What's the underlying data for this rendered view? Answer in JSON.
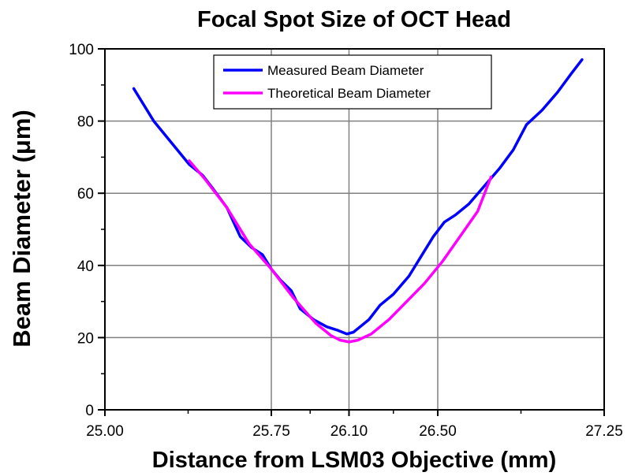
{
  "chart_data": {
    "type": "line",
    "title": "Focal Spot Size of OCT Head",
    "xlabel": "Distance from LSM03 Objective (mm)",
    "ylabel": "Beam Diameter (μm)",
    "xlim": [
      25.0,
      27.25
    ],
    "ylim": [
      0,
      100
    ],
    "xticks": [
      25.0,
      25.75,
      26.1,
      26.5,
      27.25
    ],
    "xtick_labels": [
      "25.00",
      "25.75",
      "26.10",
      "26.50",
      "27.25"
    ],
    "yticks": [
      0,
      20,
      40,
      60,
      80,
      100
    ],
    "ytick_labels": [
      "0",
      "20",
      "40",
      "60",
      "80",
      "100"
    ],
    "grid": true,
    "legend_position": "top-center",
    "series": [
      {
        "name": "Measured Beam Diameter",
        "color": "#0000ff",
        "x": [
          25.13,
          25.22,
          25.3,
          25.38,
          25.44,
          25.49,
          25.55,
          25.61,
          25.66,
          25.71,
          25.75,
          25.79,
          25.84,
          25.88,
          25.94,
          26.0,
          26.05,
          26.09,
          26.12,
          26.15,
          26.19,
          26.24,
          26.3,
          26.37,
          26.43,
          26.48,
          26.53,
          26.58,
          26.64,
          26.71,
          26.78,
          26.84,
          26.9,
          26.97,
          27.04,
          27.1,
          27.15
        ],
        "values": [
          89,
          80,
          74,
          68,
          65,
          61,
          56,
          48,
          45,
          43,
          39,
          36,
          33,
          28,
          25,
          23,
          22,
          21,
          21.5,
          23,
          25,
          29,
          32,
          37,
          43,
          48,
          52,
          54,
          57,
          62,
          67,
          72,
          79,
          83,
          88,
          93,
          97
        ]
      },
      {
        "name": "Theoretical Beam Diameter",
        "color": "#ff00ff",
        "x": [
          25.38,
          25.45,
          25.55,
          25.65,
          25.75,
          25.85,
          25.95,
          26.02,
          26.06,
          26.1,
          26.14,
          26.2,
          26.28,
          26.36,
          26.44,
          26.52,
          26.6,
          26.68,
          26.74
        ],
        "values": [
          69,
          64,
          56,
          46,
          39,
          31,
          24,
          20.5,
          19.3,
          18.8,
          19.3,
          21,
          25,
          30,
          35,
          41,
          48,
          55,
          64.5
        ]
      }
    ]
  }
}
